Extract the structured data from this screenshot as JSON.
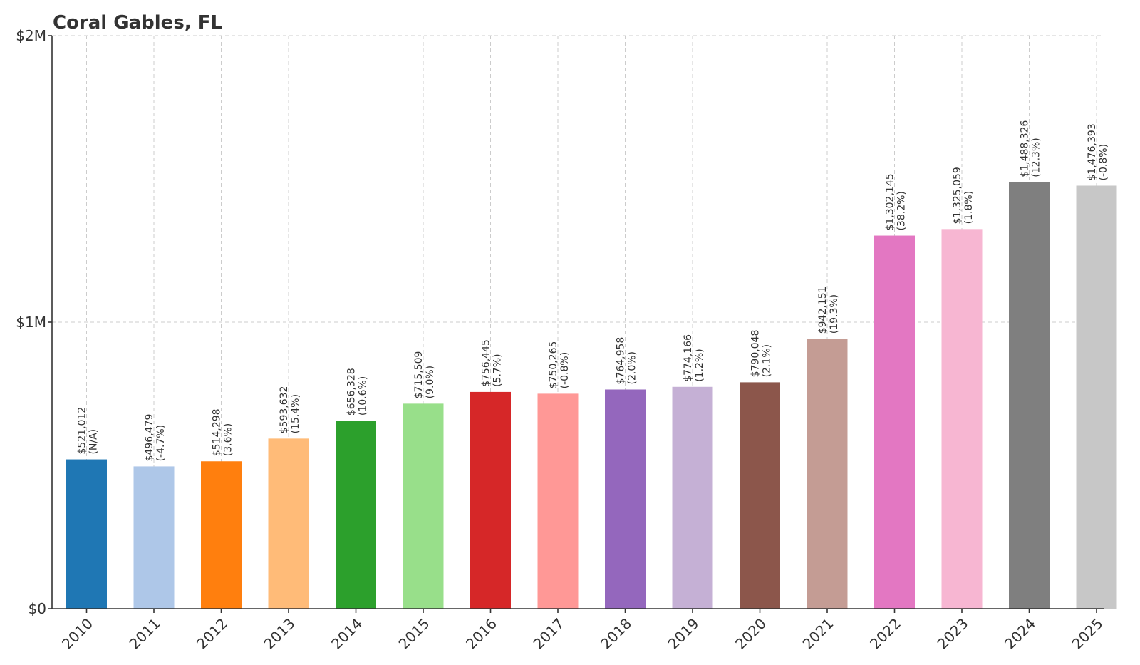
{
  "chart_data": {
    "type": "bar",
    "title": "Coral Gables, FL",
    "xlabel": "",
    "ylabel": "",
    "ylim": [
      0,
      2000000
    ],
    "yticks": [
      {
        "value": 0,
        "label": "$0"
      },
      {
        "value": 1000000,
        "label": "$1M"
      },
      {
        "value": 2000000,
        "label": "$2M"
      }
    ],
    "grid": true,
    "categories": [
      "2010",
      "2011",
      "2012",
      "2013",
      "2014",
      "2015",
      "2016",
      "2017",
      "2018",
      "2019",
      "2020",
      "2021",
      "2022",
      "2023",
      "2024",
      "2025"
    ],
    "values": [
      521012,
      496479,
      514298,
      593632,
      656328,
      715509,
      756445,
      750265,
      764958,
      774166,
      790048,
      942151,
      1302145,
      1325059,
      1488326,
      1476393
    ],
    "value_labels": [
      "$521,012",
      "$496,479",
      "$514,298",
      "$593,632",
      "$656,328",
      "$715,509",
      "$756,445",
      "$750,265",
      "$764,958",
      "$774,166",
      "$790,048",
      "$942,151",
      "$1,302,145",
      "$1,325,059",
      "$1,488,326",
      "$1,476,393"
    ],
    "change_labels": [
      "(N/A)",
      "(-4.7%)",
      "(3.6%)",
      "(15.4%)",
      "(10.6%)",
      "(9.0%)",
      "(5.7%)",
      "(-0.8%)",
      "(2.0%)",
      "(1.2%)",
      "(2.1%)",
      "(19.3%)",
      "(38.2%)",
      "(1.8%)",
      "(12.3%)",
      "(-0.8%)"
    ],
    "colors": [
      "#1f77b4",
      "#aec7e8",
      "#ff7f0e",
      "#ffbb78",
      "#2ca02c",
      "#98df8a",
      "#d62728",
      "#ff9896",
      "#9467bd",
      "#c5b0d5",
      "#8c564b",
      "#c49c94",
      "#e377c2",
      "#f7b6d2",
      "#7f7f7f",
      "#c7c7c7"
    ]
  }
}
